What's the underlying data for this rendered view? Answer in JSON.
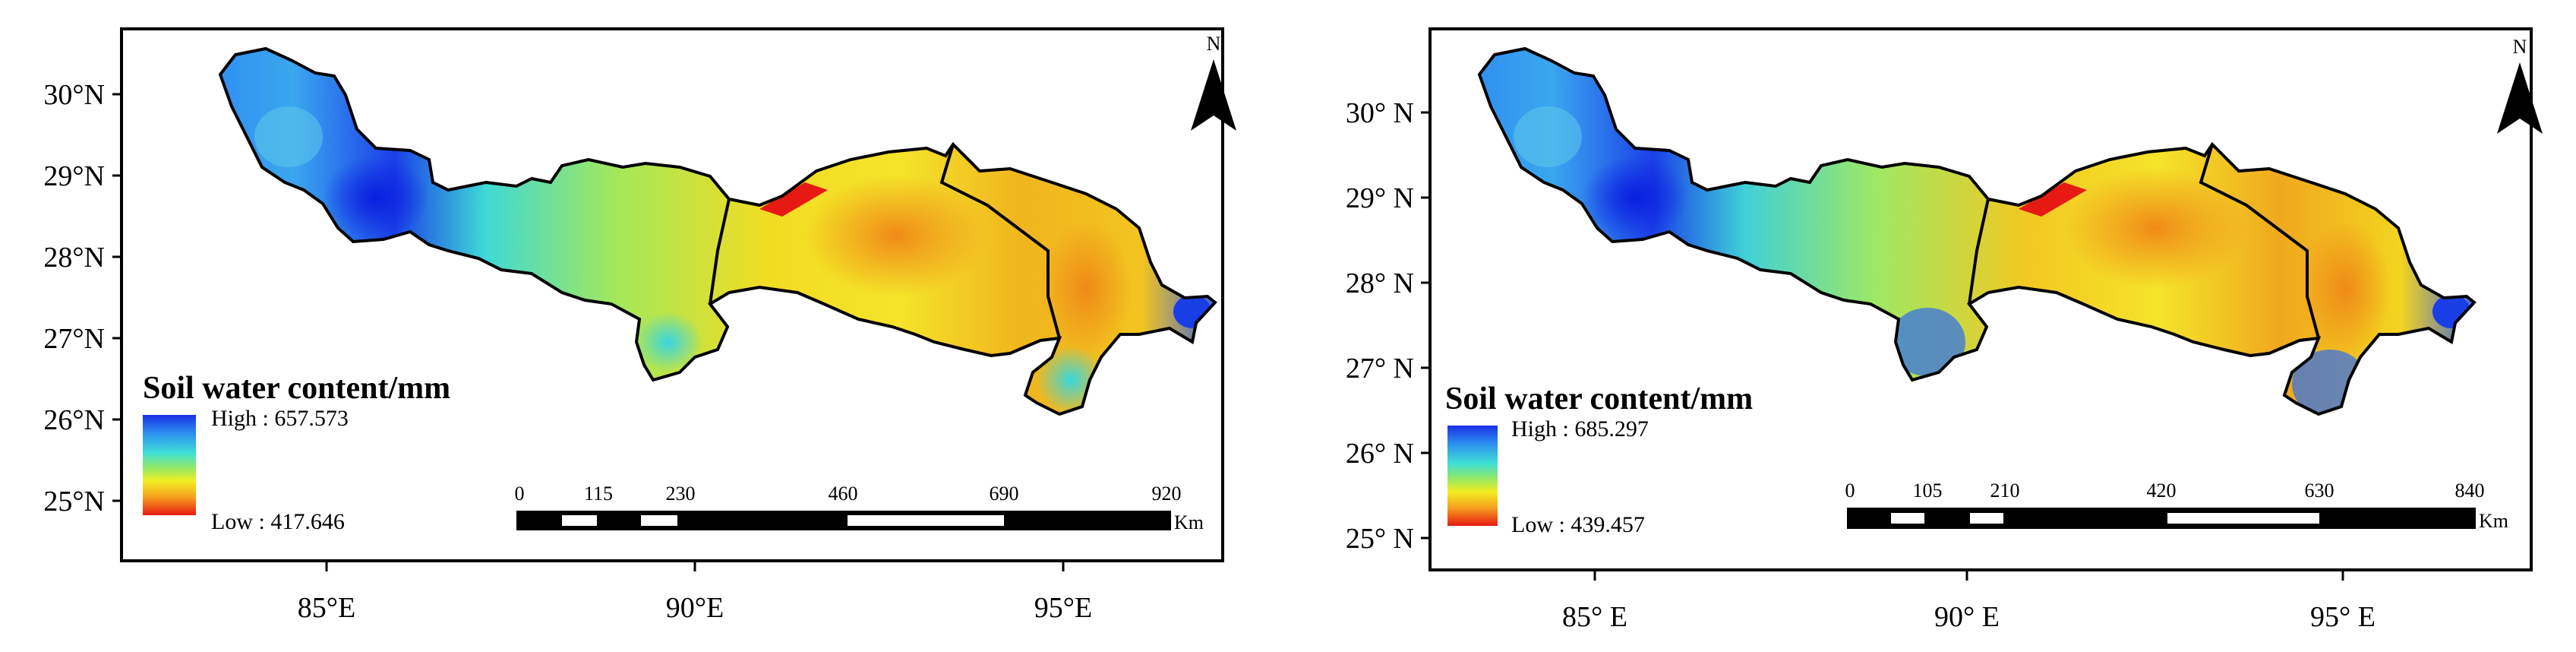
{
  "maps": [
    {
      "lat_ticks": [
        "30°N",
        "29°N",
        "28°N",
        "27°N",
        "26°N",
        "25°N"
      ],
      "lon_ticks": [
        "85°E",
        "90°E",
        "95°E"
      ],
      "legend": {
        "title": "Soil water content/mm",
        "high_label": "High : 657.573",
        "low_label": "Low : 417.646",
        "high_value": 657.573,
        "low_value": 417.646
      },
      "scale_bar": {
        "labels": [
          "0",
          "115",
          "230",
          "460",
          "690",
          "920"
        ],
        "unit": "Km"
      },
      "north_label": "N"
    },
    {
      "lat_ticks": [
        "30° N",
        "29° N",
        "28° N",
        "27° N",
        "26° N",
        "25° N"
      ],
      "lon_ticks": [
        "85° E",
        "90° E",
        "95° E"
      ],
      "legend": {
        "title": "Soil water content/mm",
        "high_label": "High : 685.297",
        "low_label": "Low : 439.457",
        "high_value": 685.297,
        "low_value": 439.457
      },
      "scale_bar": {
        "labels": [
          "0",
          "105",
          "210",
          "420",
          "630",
          "840"
        ],
        "unit": "Km"
      },
      "north_label": "N"
    }
  ],
  "colors": {
    "ramp": [
      "#1a2ee6",
      "#2d8ff0",
      "#3fe0d6",
      "#8ee86a",
      "#f2ee22",
      "#f6b81e",
      "#ef5a16",
      "#e61a12"
    ],
    "border": "#000000"
  }
}
